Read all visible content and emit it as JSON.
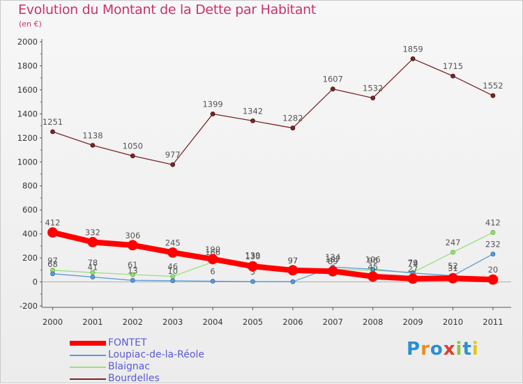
{
  "title": "Evolution du Montant de la Dette par Habitant",
  "unit": "(en €)",
  "logo": {
    "letters": [
      "P",
      "r",
      "o",
      "x",
      "i",
      "t",
      "i"
    ],
    "colors": [
      "#2c8fd0",
      "#f28a17",
      "#2c8fd0",
      "#e23c2b",
      "#8dc63f",
      "#2c8fd0",
      "#e4c51c"
    ]
  },
  "chart_data": {
    "type": "line",
    "x": [
      "2000",
      "2001",
      "2002",
      "2003",
      "2004",
      "2005",
      "2006",
      "2007",
      "2008",
      "2009",
      "2010",
      "2011"
    ],
    "ylim": [
      -200,
      2000
    ],
    "yticks": [
      "-200",
      "0",
      "200",
      "400",
      "600",
      "800",
      "1000",
      "1200",
      "1400",
      "1600",
      "1800",
      "2000"
    ],
    "grid": false,
    "legend_position": "bottom-left",
    "series": [
      {
        "name": "Bourdelles",
        "color": "#7a2525",
        "width": 1.3,
        "marker": 3,
        "show_labels": true,
        "values": [
          1251,
          1138,
          1050,
          977,
          1399,
          1342,
          1282,
          1607,
          1532,
          1859,
          1715,
          1552
        ],
        "labels": [
          "1251",
          "1138",
          "1050",
          "977",
          "1399",
          "1342",
          "1282",
          "1607",
          "1532",
          "1859",
          "1715",
          "1552"
        ]
      },
      {
        "name": "Blaignac",
        "color": "#99e07a",
        "width": 1.3,
        "marker": 3,
        "show_labels": true,
        "values": [
          97,
          78,
          61,
          46,
          166,
          139,
          97,
          107,
          96,
          79,
          247,
          412
        ],
        "labels": [
          "97",
          "78",
          "61",
          "46",
          "166",
          "139",
          "97",
          "107",
          "96",
          "79",
          "247",
          "412"
        ]
      },
      {
        "name": "Loupiac-de-la-Réole",
        "color": "#5b9bd5",
        "width": 1.3,
        "marker": 3,
        "show_labels": true,
        "values": [
          68,
          41,
          13,
          10,
          6,
          3,
          2,
          124,
          106,
          74,
          52,
          232
        ],
        "labels": [
          "68",
          "41",
          "13",
          "10",
          "6",
          "3",
          "2",
          "124",
          "106",
          "74",
          "52",
          "232"
        ]
      },
      {
        "name": "FONTET",
        "color": "#ff0000",
        "width": 8,
        "marker": 7,
        "show_labels": true,
        "values": [
          412,
          332,
          306,
          245,
          190,
          130,
          97,
          89,
          45,
          27,
          31,
          20
        ],
        "labels": [
          "412",
          "332",
          "306",
          "245",
          "190",
          "130",
          "97",
          "89",
          "45",
          "27",
          "31",
          "20"
        ]
      }
    ]
  }
}
